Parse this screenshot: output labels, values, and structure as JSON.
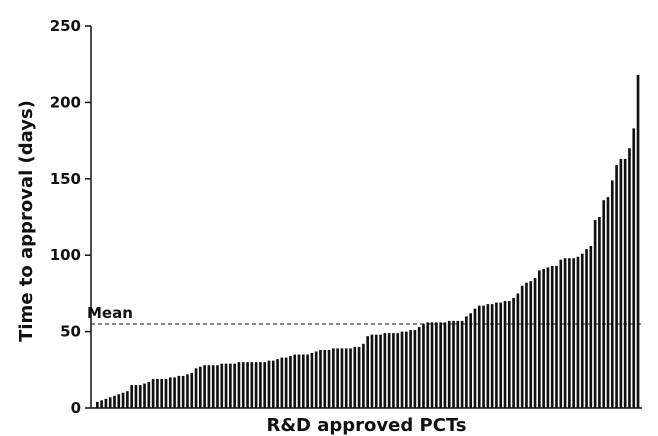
{
  "chart_data": {
    "type": "bar",
    "title": "",
    "xlabel": "R&D approved PCTs",
    "ylabel": "Time to approval (days)",
    "ylim": [
      0,
      250
    ],
    "yticks": [
      0,
      50,
      100,
      150,
      200,
      250
    ],
    "mean_label": "Mean",
    "mean_value": 55,
    "bar_color": "#111111",
    "grid": false,
    "series": [
      {
        "values": [
          4,
          5,
          6,
          7,
          8,
          9,
          10,
          11,
          15,
          15,
          15,
          16,
          17,
          19,
          19,
          19,
          19,
          20,
          20,
          21,
          21,
          22,
          23,
          26,
          27,
          28,
          28,
          28,
          28,
          29,
          29,
          29,
          29,
          30,
          30,
          30,
          30,
          30,
          30,
          30,
          31,
          31,
          32,
          33,
          33,
          34,
          35,
          35,
          35,
          35,
          36,
          37,
          38,
          38,
          38,
          39,
          39,
          39,
          39,
          39,
          40,
          40,
          42,
          47,
          48,
          48,
          48,
          49,
          49,
          49,
          49,
          50,
          50,
          51,
          51,
          53,
          55,
          56,
          56,
          56,
          56,
          56,
          57,
          57,
          57,
          57,
          60,
          62,
          65,
          67,
          67,
          68,
          68,
          69,
          69,
          70,
          70,
          72,
          75,
          80,
          82,
          83,
          85,
          90,
          91,
          92,
          93,
          93,
          97,
          98,
          98,
          98,
          99,
          101,
          104,
          106,
          123,
          125,
          136,
          138,
          149,
          159,
          163,
          163,
          170,
          183,
          218
        ]
      }
    ]
  }
}
